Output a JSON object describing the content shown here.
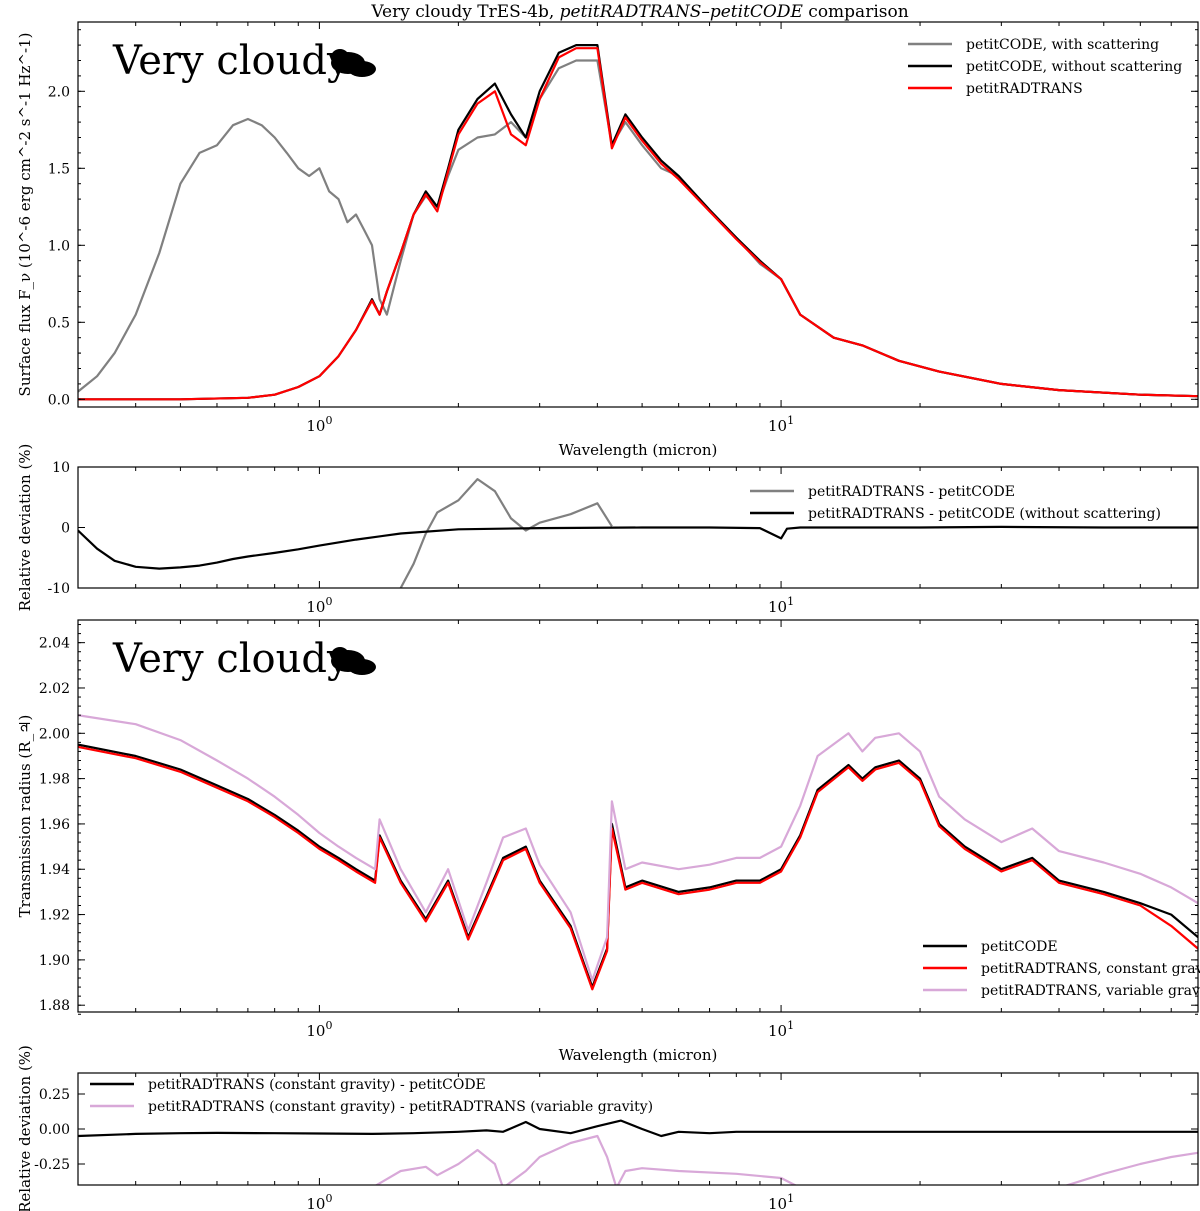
{
  "figure": {
    "title": "Very cloudy TrES-4b, petitRADTRANS–petitCODE comparison",
    "title_plain": "Very cloudy TrES-4b, ",
    "title_italic": "petitRADTRANS–petitCODE",
    "title_tail": " comparison"
  },
  "chart_data": [
    {
      "type": "line",
      "panel": "emission",
      "annotation": "Very cloudy",
      "xlabel": "Wavelength (micron)",
      "ylabel": "Surface flux F_ν (10^-6 erg cm^-2 s^-1 Hz^-1)",
      "xscale": "log",
      "xlim": [
        0.3,
        80
      ],
      "ylim": [
        -0.05,
        2.45
      ],
      "xticks": [
        {
          "value": 1,
          "label": "10^0"
        },
        {
          "value": 10,
          "label": "10^1"
        }
      ],
      "yticks": [
        0.0,
        0.5,
        1.0,
        1.5,
        2.0
      ],
      "legend_position": "top-right",
      "series": [
        {
          "name": "petitCODE, with scattering",
          "color": "#808080",
          "x": [
            0.3,
            0.33,
            0.36,
            0.4,
            0.45,
            0.5,
            0.55,
            0.6,
            0.65,
            0.7,
            0.75,
            0.8,
            0.85,
            0.9,
            0.95,
            1.0,
            1.05,
            1.1,
            1.15,
            1.2,
            1.25,
            1.3,
            1.35,
            1.4,
            1.5,
            1.6,
            1.7,
            1.8,
            1.9,
            2.0,
            2.2,
            2.4,
            2.6,
            2.8,
            3.0,
            3.3,
            3.6,
            4.0,
            4.3,
            4.6,
            5.0,
            5.5,
            6.0,
            7.0,
            8.0,
            9.0,
            10,
            11,
            13,
            15,
            18,
            22,
            30,
            40,
            60,
            80
          ],
          "y": [
            0.05,
            0.15,
            0.3,
            0.55,
            0.95,
            1.4,
            1.6,
            1.65,
            1.78,
            1.82,
            1.78,
            1.7,
            1.6,
            1.5,
            1.45,
            1.5,
            1.35,
            1.3,
            1.15,
            1.2,
            1.1,
            1.0,
            0.65,
            0.55,
            0.9,
            1.2,
            1.32,
            1.25,
            1.45,
            1.62,
            1.7,
            1.72,
            1.8,
            1.7,
            1.95,
            2.15,
            2.2,
            2.2,
            1.65,
            1.8,
            1.65,
            1.5,
            1.45,
            1.22,
            1.05,
            0.88,
            0.78,
            0.55,
            0.4,
            0.35,
            0.25,
            0.18,
            0.1,
            0.06,
            0.03,
            0.02
          ]
        },
        {
          "name": "petitCODE, without scattering",
          "color": "#000000",
          "x": [
            0.3,
            0.5,
            0.7,
            0.8,
            0.9,
            1.0,
            1.1,
            1.2,
            1.3,
            1.35,
            1.4,
            1.5,
            1.6,
            1.7,
            1.8,
            1.9,
            2.0,
            2.2,
            2.4,
            2.6,
            2.8,
            3.0,
            3.3,
            3.6,
            4.0,
            4.3,
            4.6,
            5.0,
            5.5,
            6.0,
            7.0,
            8.0,
            9.0,
            10,
            11,
            13,
            15,
            18,
            22,
            30,
            40,
            60,
            80
          ],
          "y": [
            0.0,
            0.0,
            0.01,
            0.03,
            0.08,
            0.15,
            0.28,
            0.45,
            0.65,
            0.55,
            0.7,
            0.95,
            1.2,
            1.35,
            1.25,
            1.5,
            1.75,
            1.95,
            2.05,
            1.85,
            1.7,
            2.0,
            2.25,
            2.3,
            2.3,
            1.65,
            1.85,
            1.7,
            1.55,
            1.45,
            1.23,
            1.05,
            0.9,
            0.78,
            0.55,
            0.4,
            0.35,
            0.25,
            0.18,
            0.1,
            0.06,
            0.03,
            0.02
          ]
        },
        {
          "name": "petitRADTRANS",
          "color": "#ff0000",
          "x": [
            0.3,
            0.5,
            0.7,
            0.8,
            0.9,
            1.0,
            1.1,
            1.2,
            1.3,
            1.35,
            1.4,
            1.5,
            1.6,
            1.7,
            1.8,
            1.9,
            2.0,
            2.2,
            2.4,
            2.6,
            2.8,
            3.0,
            3.3,
            3.6,
            4.0,
            4.3,
            4.6,
            5.0,
            5.5,
            6.0,
            7.0,
            8.0,
            9.0,
            10,
            11,
            13,
            15,
            18,
            22,
            30,
            40,
            60,
            80
          ],
          "y": [
            0.0,
            0.0,
            0.01,
            0.03,
            0.08,
            0.15,
            0.28,
            0.45,
            0.64,
            0.55,
            0.7,
            0.95,
            1.2,
            1.33,
            1.22,
            1.48,
            1.72,
            1.92,
            2.0,
            1.72,
            1.65,
            1.95,
            2.22,
            2.28,
            2.28,
            1.63,
            1.83,
            1.68,
            1.53,
            1.43,
            1.22,
            1.04,
            0.89,
            0.78,
            0.55,
            0.4,
            0.35,
            0.25,
            0.18,
            0.1,
            0.06,
            0.03,
            0.02
          ]
        }
      ]
    },
    {
      "type": "line",
      "panel": "emission-deviation",
      "xlabel": "",
      "ylabel": "Relative deviation (%)",
      "xscale": "log",
      "xlim": [
        0.3,
        80
      ],
      "ylim": [
        -10,
        10
      ],
      "xticks": [
        {
          "value": 1,
          "label": "10^0"
        },
        {
          "value": 10,
          "label": "10^1"
        }
      ],
      "yticks": [
        -10,
        0,
        10
      ],
      "legend_position": "top-right",
      "series": [
        {
          "name": "petitRADTRANS - petitCODE",
          "color": "#808080",
          "x": [
            1.5,
            1.6,
            1.7,
            1.8,
            2.0,
            2.2,
            2.4,
            2.6,
            2.8,
            3.0,
            3.5,
            4.0,
            4.3
          ],
          "y": [
            -10,
            -6,
            -1,
            2.5,
            4.5,
            8,
            6,
            1.5,
            -0.5,
            0.8,
            2.2,
            4,
            0.2
          ]
        },
        {
          "name": "petitRADTRANS - petitCODE (without scattering)",
          "color": "#000000",
          "x": [
            0.3,
            0.33,
            0.36,
            0.4,
            0.45,
            0.5,
            0.55,
            0.6,
            0.65,
            0.7,
            0.8,
            0.9,
            1.0,
            1.2,
            1.5,
            2.0,
            3.0,
            5.0,
            7.0,
            9.0,
            10.0,
            10.3,
            11,
            15,
            20,
            30,
            50,
            80
          ],
          "y": [
            -0.5,
            -3.5,
            -5.5,
            -6.5,
            -6.8,
            -6.6,
            -6.3,
            -5.8,
            -5.2,
            -4.8,
            -4.2,
            -3.6,
            -3.0,
            -2.0,
            -1.0,
            -0.3,
            -0.1,
            0.0,
            0.0,
            -0.1,
            -1.8,
            -0.2,
            0.0,
            0.0,
            0.0,
            0.1,
            0.0,
            0.0
          ]
        }
      ]
    },
    {
      "type": "line",
      "panel": "transmission",
      "annotation": "Very cloudy",
      "xlabel": "Wavelength (micron)",
      "ylabel": "Transmission radius (R_♃)",
      "xscale": "log",
      "xlim": [
        0.3,
        80
      ],
      "ylim": [
        1.877,
        2.05
      ],
      "xticks": [
        {
          "value": 1,
          "label": "10^0"
        },
        {
          "value": 10,
          "label": "10^1"
        }
      ],
      "yticks": [
        1.88,
        1.9,
        1.92,
        1.94,
        1.96,
        1.98,
        2.0,
        2.02,
        2.04
      ],
      "legend_position": "bottom-right",
      "series": [
        {
          "name": "petitCODE",
          "color": "#000000",
          "x": [
            0.3,
            0.4,
            0.5,
            0.6,
            0.7,
            0.8,
            0.9,
            1.0,
            1.1,
            1.2,
            1.32,
            1.35,
            1.5,
            1.7,
            1.9,
            2.1,
            2.3,
            2.5,
            2.8,
            3.0,
            3.5,
            3.9,
            4.2,
            4.3,
            4.6,
            5.0,
            6.0,
            7.0,
            8.0,
            9.0,
            10,
            11,
            12,
            14,
            15,
            16,
            18,
            20,
            22,
            25,
            30,
            35,
            40,
            50,
            60,
            70,
            80
          ],
          "y": [
            1.995,
            1.99,
            1.984,
            1.977,
            1.971,
            1.964,
            1.957,
            1.95,
            1.945,
            1.94,
            1.935,
            1.955,
            1.935,
            1.918,
            1.935,
            1.91,
            1.928,
            1.945,
            1.95,
            1.935,
            1.915,
            1.888,
            1.905,
            1.96,
            1.932,
            1.935,
            1.93,
            1.932,
            1.935,
            1.935,
            1.94,
            1.955,
            1.975,
            1.986,
            1.98,
            1.985,
            1.988,
            1.98,
            1.96,
            1.95,
            1.94,
            1.945,
            1.935,
            1.93,
            1.925,
            1.92,
            1.91
          ]
        },
        {
          "name": "petitRADTRANS, constant gravity",
          "color": "#ff0000",
          "x": [
            0.3,
            0.4,
            0.5,
            0.6,
            0.7,
            0.8,
            0.9,
            1.0,
            1.1,
            1.2,
            1.32,
            1.35,
            1.5,
            1.7,
            1.9,
            2.1,
            2.3,
            2.5,
            2.8,
            3.0,
            3.5,
            3.9,
            4.2,
            4.3,
            4.6,
            5.0,
            6.0,
            7.0,
            8.0,
            9.0,
            10,
            11,
            12,
            14,
            15,
            16,
            18,
            20,
            22,
            25,
            30,
            35,
            40,
            50,
            60,
            70,
            80
          ],
          "y": [
            1.994,
            1.989,
            1.983,
            1.976,
            1.97,
            1.963,
            1.956,
            1.949,
            1.944,
            1.939,
            1.934,
            1.954,
            1.934,
            1.917,
            1.934,
            1.909,
            1.927,
            1.944,
            1.949,
            1.934,
            1.914,
            1.887,
            1.904,
            1.958,
            1.931,
            1.934,
            1.929,
            1.931,
            1.934,
            1.934,
            1.939,
            1.954,
            1.974,
            1.985,
            1.979,
            1.984,
            1.987,
            1.979,
            1.959,
            1.949,
            1.939,
            1.944,
            1.934,
            1.929,
            1.924,
            1.915,
            1.905
          ]
        },
        {
          "name": "petitRADTRANS, variable gravity",
          "color": "#d8a8d8",
          "x": [
            0.3,
            0.4,
            0.5,
            0.6,
            0.7,
            0.8,
            0.9,
            1.0,
            1.1,
            1.2,
            1.32,
            1.35,
            1.5,
            1.7,
            1.9,
            2.1,
            2.3,
            2.5,
            2.8,
            3.0,
            3.5,
            3.9,
            4.2,
            4.3,
            4.6,
            5.0,
            6.0,
            7.0,
            8.0,
            9.0,
            10,
            11,
            12,
            14,
            15,
            16,
            18,
            20,
            22,
            25,
            30,
            35,
            40,
            50,
            60,
            70,
            80
          ],
          "y": [
            2.008,
            2.004,
            1.997,
            1.988,
            1.98,
            1.972,
            1.964,
            1.956,
            1.95,
            1.945,
            1.94,
            1.962,
            1.94,
            1.921,
            1.94,
            1.913,
            1.934,
            1.954,
            1.958,
            1.942,
            1.921,
            1.891,
            1.91,
            1.97,
            1.94,
            1.943,
            1.94,
            1.942,
            1.945,
            1.945,
            1.95,
            1.968,
            1.99,
            2.0,
            1.992,
            1.998,
            2.0,
            1.992,
            1.972,
            1.962,
            1.952,
            1.958,
            1.948,
            1.943,
            1.938,
            1.932,
            1.925
          ]
        }
      ]
    },
    {
      "type": "line",
      "panel": "transmission-deviation",
      "xlabel": "",
      "ylabel": "Relative deviation (%)",
      "xscale": "log",
      "xlim": [
        0.3,
        80
      ],
      "ylim": [
        -0.4,
        0.4
      ],
      "xticks": [
        {
          "value": 1,
          "label": "10^0"
        },
        {
          "value": 10,
          "label": "10^1"
        }
      ],
      "yticks": [
        -0.25,
        0.0,
        0.25
      ],
      "legend_position": "top-left",
      "series": [
        {
          "name": "petitRADTRANS (constant gravity) - petitCODE",
          "color": "#000000",
          "x": [
            0.3,
            0.4,
            0.5,
            0.6,
            0.8,
            1.0,
            1.3,
            1.6,
            2.0,
            2.3,
            2.5,
            2.8,
            3.0,
            3.5,
            4.0,
            4.5,
            5.0,
            5.5,
            6.0,
            7.0,
            8.0,
            10,
            15,
            20,
            30,
            40,
            60,
            80
          ],
          "y": [
            -0.05,
            -0.035,
            -0.03,
            -0.028,
            -0.03,
            -0.032,
            -0.035,
            -0.03,
            -0.02,
            -0.01,
            -0.02,
            0.05,
            0.0,
            -0.03,
            0.02,
            0.06,
            0.0,
            -0.05,
            -0.02,
            -0.03,
            -0.02,
            -0.02,
            -0.02,
            -0.02,
            -0.02,
            -0.02,
            -0.02,
            -0.02
          ]
        },
        {
          "name": "petitRADTRANS (constant gravity) - petitRADTRANS (variable gravity)",
          "color": "#d8a8d8",
          "x": [
            1.3,
            1.5,
            1.7,
            1.8,
            2.0,
            2.2,
            2.4,
            2.5,
            2.8,
            3.0,
            3.5,
            4.0,
            4.2,
            4.4,
            4.6,
            5.0,
            6.0,
            8.0,
            10,
            11,
            40,
            50,
            60,
            70,
            80
          ],
          "y": [
            -0.42,
            -0.3,
            -0.27,
            -0.33,
            -0.25,
            -0.15,
            -0.25,
            -0.42,
            -0.3,
            -0.2,
            -0.1,
            -0.05,
            -0.2,
            -0.42,
            -0.3,
            -0.28,
            -0.3,
            -0.32,
            -0.35,
            -0.42,
            -0.42,
            -0.32,
            -0.25,
            -0.2,
            -0.17
          ]
        }
      ]
    }
  ]
}
